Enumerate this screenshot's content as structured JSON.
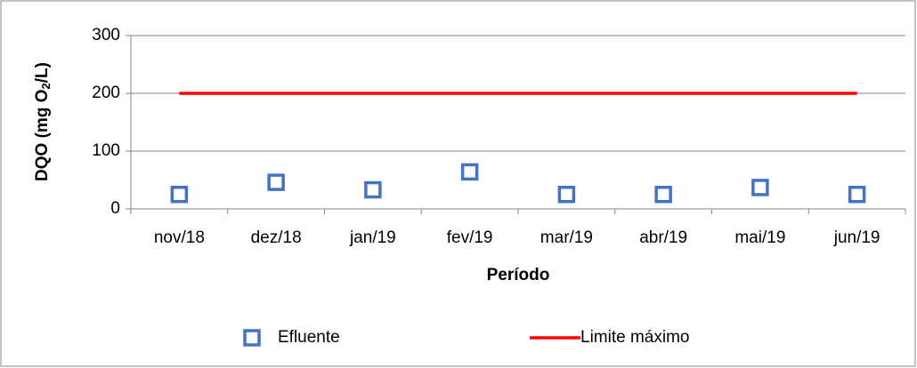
{
  "chart_data": {
    "type": "line",
    "y_label": [
      "DQO (mg O",
      "2",
      "/L)"
    ],
    "x_label": "Período",
    "categories": [
      "nov/18",
      "dez/18",
      "jan/19",
      "fev/19",
      "mar/19",
      "abr/19",
      "mai/19",
      "jun/19"
    ],
    "series": [
      {
        "name": "Efluente",
        "color": "#4472c4",
        "style": "marker",
        "values": [
          25,
          46,
          33,
          64,
          25,
          25,
          37,
          25
        ]
      },
      {
        "name": "Limite máximo",
        "color": "#ff0000",
        "style": "line",
        "values": [
          200,
          200,
          200,
          200,
          200,
          200,
          200,
          200
        ]
      }
    ],
    "ylim": [
      0,
      300
    ],
    "yticks": [
      0,
      100,
      200,
      300
    ],
    "grid": true,
    "legend": "bottom"
  }
}
